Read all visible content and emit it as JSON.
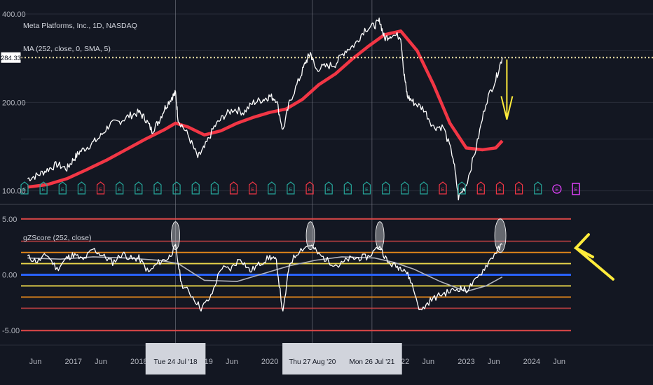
{
  "header": {
    "symbol": "Meta Platforms, Inc., 1D, NASDAQ",
    "ma_label": "MA (252, close, 0, SMA, 5)",
    "price_tag": "284.33",
    "zscore_label": "gZScore (252, close)"
  },
  "colors": {
    "background": "#131722",
    "price_line": "#ffffff",
    "ma_line": "#f23645",
    "dotted": "#f5e6a8",
    "arrow": "#ffeb3b",
    "zscore_line": "#ffffff",
    "zscore_ma": "#b0b3bd",
    "band_red": "#e04848",
    "band_orange": "#e88a1a",
    "band_yellow": "#e8d44a",
    "band_blue": "#2962ff",
    "earnings_green": "#26a69a",
    "earnings_red": "#f23645",
    "split_purple": "#e040fb"
  },
  "chart_data": [
    {
      "type": "line",
      "title": "Meta Platforms, Inc., 1D, NASDAQ",
      "y_scale": "log",
      "ylim": [
        95,
        400
      ],
      "y_ticks": [
        {
          "label": "400.00",
          "value": 400
        },
        {
          "label": "200.00",
          "value": 200
        },
        {
          "label": "100.00",
          "value": 100
        }
      ],
      "series": [
        {
          "name": "Price",
          "x": [
            2016.3,
            2016.45,
            2016.6,
            2016.75,
            2016.9,
            2017.0,
            2017.1,
            2017.25,
            2017.4,
            2017.55,
            2017.7,
            2017.85,
            2018.0,
            2018.1,
            2018.2,
            2018.3,
            2018.4,
            2018.5,
            2018.56,
            2018.6,
            2018.75,
            2018.9,
            2019.0,
            2019.15,
            2019.3,
            2019.45,
            2019.6,
            2019.75,
            2019.9,
            2020.0,
            2020.1,
            2020.2,
            2020.3,
            2020.45,
            2020.55,
            2020.62,
            2020.7,
            2020.85,
            2021.0,
            2021.15,
            2021.3,
            2021.45,
            2021.6,
            2021.68,
            2021.75,
            2021.85,
            2022.0,
            2022.05,
            2022.1,
            2022.2,
            2022.35,
            2022.5,
            2022.65,
            2022.8,
            2022.88,
            2023.0,
            2023.15,
            2023.3,
            2023.45,
            2023.55
          ],
          "y": [
            110,
            113,
            118,
            123,
            119,
            128,
            136,
            143,
            152,
            168,
            172,
            180,
            185,
            176,
            160,
            172,
            192,
            208,
            215,
            175,
            155,
            130,
            140,
            165,
            180,
            190,
            185,
            200,
            205,
            210,
            205,
            160,
            200,
            240,
            275,
            295,
            260,
            265,
            270,
            300,
            315,
            355,
            365,
            380,
            330,
            340,
            335,
            250,
            210,
            200,
            190,
            165,
            165,
            130,
            95,
            105,
            140,
            200,
            240,
            284.33
          ]
        },
        {
          "name": "MA (252, close, 0, SMA, 5)",
          "x": [
            2016.3,
            2016.6,
            2016.9,
            2017.2,
            2017.5,
            2017.8,
            2018.1,
            2018.4,
            2018.56,
            2018.75,
            2019.0,
            2019.25,
            2019.5,
            2019.75,
            2020.0,
            2020.25,
            2020.5,
            2020.75,
            2021.0,
            2021.25,
            2021.5,
            2021.75,
            2022.0,
            2022.25,
            2022.5,
            2022.75,
            2023.0,
            2023.25,
            2023.45,
            2023.55
          ],
          "y": [
            103,
            105,
            110,
            118,
            127,
            138,
            150,
            162,
            170,
            165,
            155,
            160,
            170,
            178,
            185,
            190,
            205,
            230,
            250,
            280,
            310,
            340,
            350,
            300,
            230,
            170,
            140,
            138,
            140,
            148
          ]
        }
      ],
      "earnings": [
        "E",
        "E",
        "E",
        "E",
        "E",
        "E",
        "E",
        "E",
        "E",
        "E",
        "E",
        "E",
        "E",
        "E",
        "E",
        "E",
        "E",
        "E",
        "E",
        "E",
        "E",
        "E",
        "E",
        "E",
        "E",
        "E",
        "E",
        "E",
        "E",
        "E"
      ],
      "earnings_signal": [
        "g",
        "g",
        "g",
        "g",
        "r",
        "g",
        "g",
        "g",
        "g",
        "g",
        "g",
        "r",
        "r",
        "g",
        "g",
        "r",
        "g",
        "g",
        "g",
        "g",
        "g",
        "g",
        "r",
        "g",
        "r",
        "r",
        "r",
        "g",
        "split",
        "E"
      ]
    },
    {
      "type": "line",
      "title": "gZScore (252, close)",
      "ylim": [
        -5.8,
        5.8
      ],
      "y_ticks": [
        {
          "label": "5.00",
          "value": 5
        },
        {
          "label": "0.00",
          "value": 0
        },
        {
          "label": "-5.00",
          "value": -5
        }
      ],
      "bands": [
        5,
        3,
        2,
        1,
        -1,
        -2,
        -3,
        -5
      ],
      "series": [
        {
          "name": "Z-Score",
          "x": [
            2016.3,
            2016.45,
            2016.6,
            2016.75,
            2016.9,
            2017.0,
            2017.15,
            2017.3,
            2017.45,
            2017.6,
            2017.75,
            2017.9,
            2018.0,
            2018.15,
            2018.3,
            2018.45,
            2018.56,
            2018.65,
            2018.8,
            2018.95,
            2019.1,
            2019.25,
            2019.4,
            2019.55,
            2019.7,
            2019.85,
            2020.0,
            2020.1,
            2020.2,
            2020.3,
            2020.45,
            2020.62,
            2020.75,
            2020.9,
            2021.05,
            2021.2,
            2021.35,
            2021.5,
            2021.68,
            2021.8,
            2021.95,
            2022.05,
            2022.15,
            2022.3,
            2022.45,
            2022.6,
            2022.75,
            2022.9,
            2023.0,
            2023.15,
            2023.3,
            2023.45,
            2023.55
          ],
          "y": [
            1.6,
            1.2,
            1.8,
            0.5,
            1.5,
            1.8,
            1.3,
            2.3,
            1.7,
            1.1,
            1.9,
            1.4,
            1.5,
            0.2,
            1.1,
            1.5,
            2.5,
            -0.8,
            -1.8,
            -3.0,
            -2.0,
            0.6,
            0.5,
            1.5,
            0.3,
            1.0,
            1.6,
            1.2,
            -3.5,
            1.0,
            2.2,
            2.7,
            1.8,
            1.2,
            0.8,
            1.4,
            1.5,
            1.6,
            2.6,
            1.1,
            0.7,
            0.6,
            -0.5,
            -3.3,
            -2.3,
            -1.8,
            -1.5,
            -1.2,
            -1.4,
            -0.5,
            0.8,
            2.0,
            2.7
          ]
        },
        {
          "name": "Z-Score MA",
          "x": [
            2016.3,
            2016.8,
            2017.3,
            2017.8,
            2018.3,
            2018.6,
            2019.0,
            2019.5,
            2019.9,
            2020.3,
            2020.7,
            2021.1,
            2021.6,
            2021.9,
            2022.2,
            2022.6,
            2023.0,
            2023.3,
            2023.55
          ],
          "y": [
            1.5,
            1.4,
            1.6,
            1.5,
            1.3,
            1.0,
            -0.5,
            -0.6,
            0.1,
            0.8,
            1.3,
            1.6,
            1.5,
            1.1,
            0.5,
            -0.6,
            -1.5,
            -1.0,
            -0.2
          ]
        }
      ],
      "highlights": [
        2018.56,
        2020.62,
        2021.68,
        2023.52
      ]
    }
  ],
  "x_axis": {
    "ticks": [
      {
        "label": "Jun",
        "value": 2016.42
      },
      {
        "label": "2017",
        "value": 2017.0
      },
      {
        "label": "Jun",
        "value": 2017.42
      },
      {
        "label": "2018",
        "value": 2018.0
      },
      {
        "label": "Jun",
        "value": 2018.42
      },
      {
        "label": "2019",
        "value": 2019.0
      },
      {
        "label": "Jun",
        "value": 2019.42
      },
      {
        "label": "2020",
        "value": 2020.0
      },
      {
        "label": "Jun",
        "value": 2020.42
      },
      {
        "label": "2021",
        "value": 2021.0
      },
      {
        "label": "Jun",
        "value": 2021.42
      },
      {
        "label": "2022",
        "value": 2022.0
      },
      {
        "label": "Jun",
        "value": 2022.42
      },
      {
        "label": "2023",
        "value": 2023.0
      },
      {
        "label": "Jun",
        "value": 2023.42
      },
      {
        "label": "2024",
        "value": 2024.0
      },
      {
        "label": "Jun",
        "value": 2024.42
      }
    ],
    "xlim": [
      2016.2,
      2024.6
    ],
    "date_markers": [
      {
        "label": "Tue 24 Jul '18",
        "value": 2018.56
      },
      {
        "label": "Thu 27 Aug '20",
        "value": 2020.65
      },
      {
        "label": "Mon 26 Jul '21",
        "value": 2021.56
      }
    ]
  }
}
